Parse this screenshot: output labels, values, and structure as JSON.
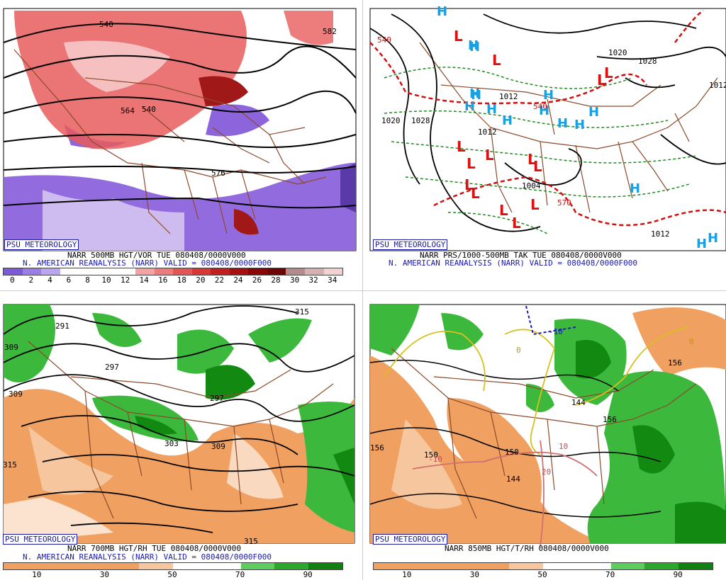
{
  "panels": [
    {
      "badge": "PSU METEOROLOGY",
      "caption1": "NARR 500MB HGT/VOR TUE 080408/0000V000",
      "caption2": "N. AMERICAN REANALYSIS (NARR) VALID = 080408/0000F000",
      "contour_labels": [
        "540",
        "576",
        "564",
        "582",
        "540"
      ],
      "legend_ticks": [
        "0",
        "2",
        "4",
        "6",
        "8",
        "10",
        "12",
        "14",
        "16",
        "18",
        "20",
        "22",
        "24",
        "26",
        "28",
        "30",
        "32",
        "34"
      ],
      "legend_colors": [
        "#7d5ad8",
        "#9b7de6",
        "#b9a6ef",
        "#ffffff",
        "#ffffff",
        "#ffffff",
        "#ffffff",
        "#f3a3a3",
        "#ec7b7b",
        "#e45656",
        "#d93636",
        "#c22020",
        "#a81010",
        "#8a0606",
        "#6e0404",
        "#b58a8a",
        "#d4b0b0",
        "#f1d2d2"
      ]
    },
    {
      "badge": "PSU METEOROLOGY",
      "caption1": "NARR PRS/1000-500MB TAK TUE 080408/0000V000",
      "caption2": "N. AMERICAN REANALYSIS (NARR) VALID = 080408/0000F000",
      "contour_labels": [
        "1020",
        "1028",
        "1012",
        "1004",
        "1020",
        "1028",
        "1012",
        "540",
        "540",
        "570",
        "1012",
        "1012"
      ],
      "H_count": 17,
      "L_count": 14
    },
    {
      "badge": "PSU METEOROLOGY",
      "caption1": "NARR 700MB HGT/RH TUE 080408/0000V000",
      "caption2": "N. AMERICAN REANALYSIS (NARR) VALID = 080408/0000F000",
      "contour_labels": [
        "291",
        "315",
        "309",
        "297",
        "303",
        "309",
        "315",
        "309",
        "297",
        "315"
      ],
      "legend_ticks": [
        "10",
        "30",
        "50",
        "70",
        "90"
      ],
      "legend_colors": [
        "#f0a060",
        "#f0a060",
        "#f0a060",
        "#f0a060",
        "#f6c79e",
        "#ffffff",
        "#ffffff",
        "#5fcc5f",
        "#2aa82a",
        "#108010"
      ]
    },
    {
      "badge": "PSU METEOROLOGY",
      "caption1": "NARR 850MB HGT/T/RH 080408/0000V000",
      "contour_labels": [
        "156",
        "144",
        "150",
        "156",
        "144",
        "156",
        "-10",
        "0",
        "0",
        "10",
        "20",
        "-10",
        "150"
      ],
      "legend_ticks": [
        "10",
        "30",
        "50",
        "70",
        "90"
      ],
      "legend_colors": [
        "#f0a060",
        "#f0a060",
        "#f0a060",
        "#f0a060",
        "#f6c79e",
        "#ffffff",
        "#ffffff",
        "#5fcc5f",
        "#2aa82a",
        "#108010"
      ]
    }
  ],
  "colors": {
    "vort_neg": "#8c64dc",
    "vort_pos": "#e85c5c",
    "vort_strong": "#a01818",
    "rh_dry": "#f0a060",
    "rh_moist": "#3cb83c",
    "rh_moist_dark": "#128a12",
    "borders": "#8b4a2a",
    "high_marker": "#1aa0e0",
    "low_marker": "#e01010",
    "thickness": "#d01010",
    "isobar_alt": "#208a20"
  }
}
